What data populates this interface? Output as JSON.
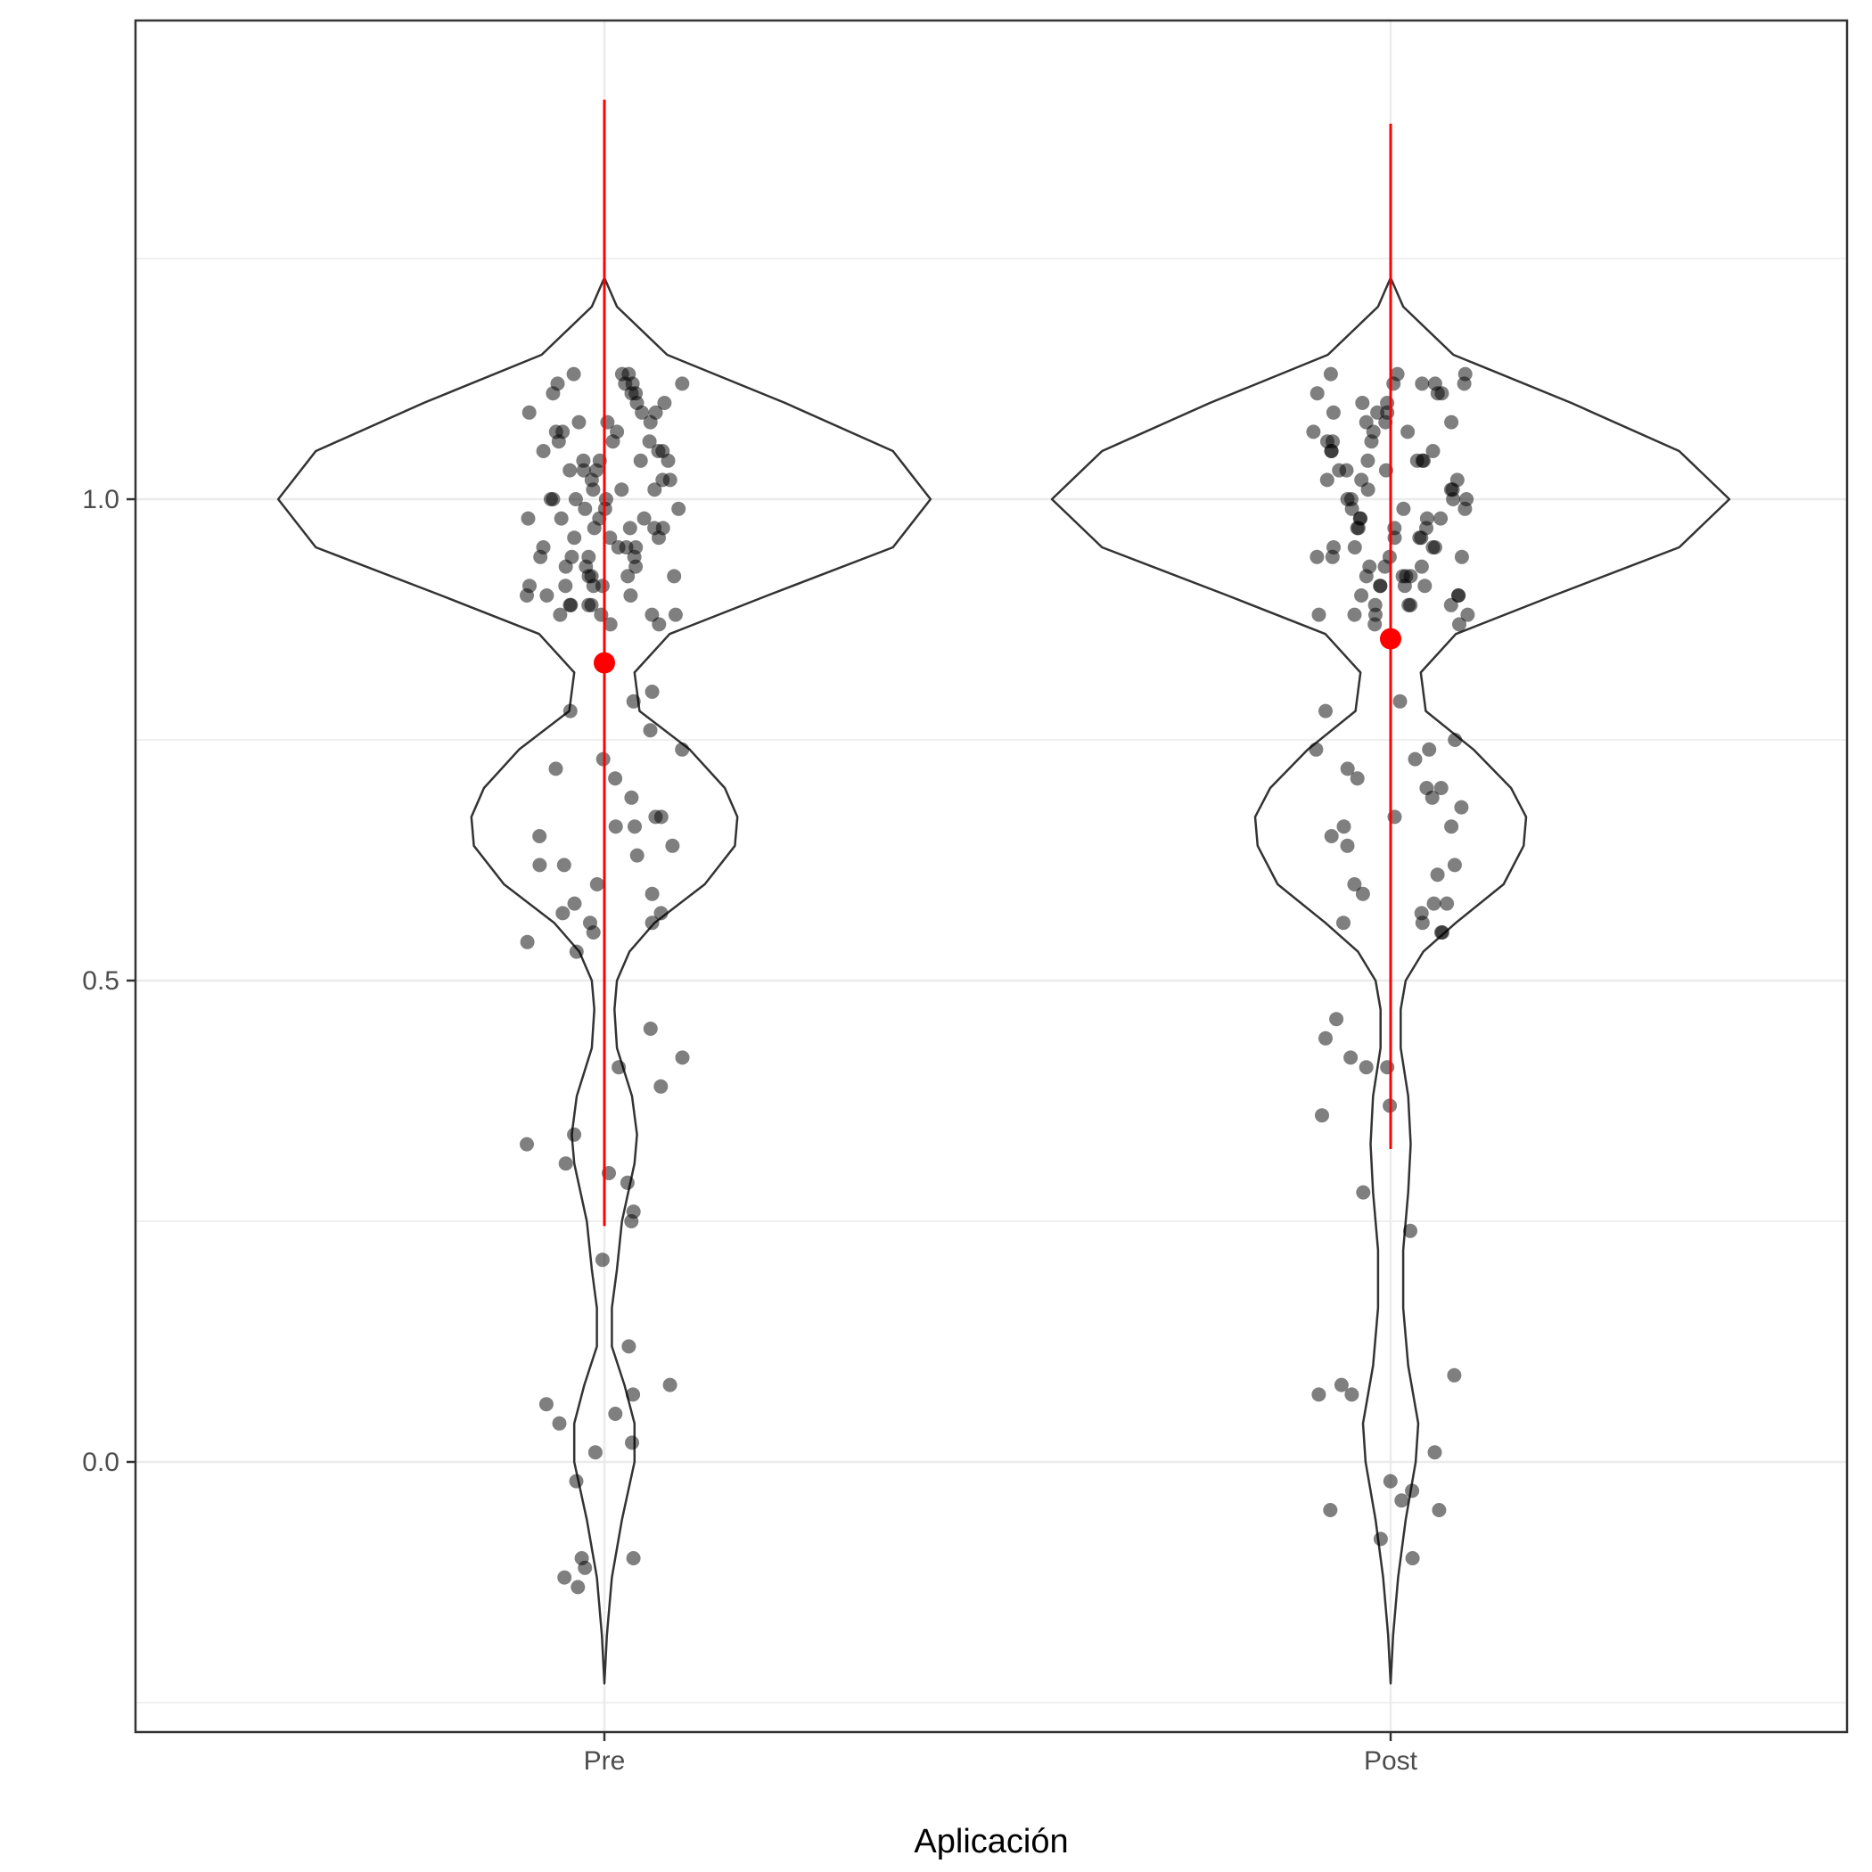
{
  "chart_data": {
    "type": "violin",
    "title": "",
    "xlabel": "Aplicación",
    "ylabel": "",
    "categories": [
      "Pre",
      "Post"
    ],
    "ylim": [
      -0.27,
      1.5
    ],
    "yticks": [
      0.0,
      0.5,
      1.0
    ],
    "ytick_labels": [
      "0.0",
      "0.5",
      "1.0"
    ],
    "grid": true,
    "colors": {
      "points": "#000000",
      "summary": "#ff0000",
      "violin_outline": "#333333",
      "grid": "#ebebeb",
      "panel_border": "#333333"
    },
    "summary": [
      {
        "category": "Pre",
        "mean": 0.83,
        "low": 0.245,
        "high": 1.415
      },
      {
        "category": "Post",
        "mean": 0.855,
        "low": 0.325,
        "high": 1.39
      }
    ],
    "violin_range": [
      -0.23,
      1.23
    ],
    "violins": [
      {
        "category": "Pre",
        "profile": [
          [
            -0.23,
            0.0
          ],
          [
            -0.18,
            0.01
          ],
          [
            -0.12,
            0.03
          ],
          [
            -0.06,
            0.07
          ],
          [
            0.0,
            0.12
          ],
          [
            0.04,
            0.12
          ],
          [
            0.08,
            0.08
          ],
          [
            0.12,
            0.03
          ],
          [
            0.16,
            0.03
          ],
          [
            0.2,
            0.05
          ],
          [
            0.25,
            0.07
          ],
          [
            0.31,
            0.12
          ],
          [
            0.34,
            0.13
          ],
          [
            0.38,
            0.11
          ],
          [
            0.43,
            0.05
          ],
          [
            0.47,
            0.04
          ],
          [
            0.5,
            0.05
          ],
          [
            0.53,
            0.1
          ],
          [
            0.56,
            0.2
          ],
          [
            0.6,
            0.4
          ],
          [
            0.64,
            0.52
          ],
          [
            0.67,
            0.53
          ],
          [
            0.7,
            0.48
          ],
          [
            0.74,
            0.34
          ],
          [
            0.78,
            0.14
          ],
          [
            0.82,
            0.12
          ],
          [
            0.86,
            0.26
          ],
          [
            0.9,
            0.65
          ],
          [
            0.95,
            1.15
          ],
          [
            1.0,
            1.3
          ],
          [
            1.05,
            1.15
          ],
          [
            1.1,
            0.72
          ],
          [
            1.15,
            0.25
          ],
          [
            1.2,
            0.05
          ],
          [
            1.23,
            0.0
          ]
        ]
      },
      {
        "category": "Post",
        "profile": [
          [
            -0.23,
            0.0
          ],
          [
            -0.18,
            0.01
          ],
          [
            -0.12,
            0.03
          ],
          [
            -0.06,
            0.06
          ],
          [
            0.0,
            0.1
          ],
          [
            0.04,
            0.11
          ],
          [
            0.1,
            0.07
          ],
          [
            0.16,
            0.05
          ],
          [
            0.22,
            0.05
          ],
          [
            0.28,
            0.07
          ],
          [
            0.33,
            0.08
          ],
          [
            0.38,
            0.07
          ],
          [
            0.43,
            0.04
          ],
          [
            0.47,
            0.04
          ],
          [
            0.5,
            0.06
          ],
          [
            0.53,
            0.13
          ],
          [
            0.56,
            0.26
          ],
          [
            0.6,
            0.45
          ],
          [
            0.64,
            0.53
          ],
          [
            0.67,
            0.54
          ],
          [
            0.7,
            0.48
          ],
          [
            0.74,
            0.33
          ],
          [
            0.78,
            0.14
          ],
          [
            0.82,
            0.12
          ],
          [
            0.86,
            0.26
          ],
          [
            0.9,
            0.65
          ],
          [
            0.95,
            1.15
          ],
          [
            1.0,
            1.35
          ],
          [
            1.05,
            1.15
          ],
          [
            1.1,
            0.72
          ],
          [
            1.15,
            0.25
          ],
          [
            1.2,
            0.05
          ],
          [
            1.23,
            0.0
          ]
        ]
      }
    ],
    "points": [
      {
        "category": "Pre",
        "values": [
          1.13,
          1.13,
          1.12,
          1.12,
          1.12,
          1.11,
          1.11,
          1.1,
          1.1,
          1.09,
          1.09,
          1.08,
          1.08,
          1.07,
          1.07,
          1.07,
          1.06,
          1.06,
          1.05,
          1.05,
          1.05,
          1.04,
          1.04,
          1.04,
          1.03,
          1.03,
          1.02,
          1.02,
          1.02,
          1.01,
          1.01,
          1.0,
          1.0,
          1.0,
          0.99,
          0.99,
          0.99,
          0.98,
          0.98,
          0.98,
          0.97,
          0.97,
          0.97,
          0.96,
          0.96,
          0.96,
          0.95,
          0.95,
          0.95,
          0.94,
          0.94,
          0.94,
          0.93,
          0.93,
          0.93,
          0.92,
          0.92,
          0.92,
          0.91,
          0.91,
          0.91,
          0.9,
          0.9,
          0.9,
          0.89,
          0.89,
          0.89,
          0.88,
          0.88,
          0.88,
          0.87,
          0.87,
          1.13,
          1.11,
          1.09,
          1.06,
          1.03,
          1.0,
          0.97,
          0.94,
          0.91,
          0.88,
          1.12,
          1.08,
          1.04,
          1.01,
          0.98,
          0.95,
          0.92,
          0.89,
          0.8,
          0.79,
          0.78,
          0.76,
          0.74,
          0.73,
          0.72,
          0.71,
          0.69,
          0.67,
          0.66,
          0.66,
          0.65,
          0.64,
          0.62,
          0.62,
          0.6,
          0.59,
          0.58,
          0.57,
          0.57,
          0.56,
          0.56,
          0.55,
          0.54,
          0.53,
          0.63,
          0.67,
          0.45,
          0.42,
          0.41,
          0.39,
          0.34,
          0.33,
          0.31,
          0.3,
          0.29,
          0.26,
          0.25,
          0.21,
          0.12,
          0.08,
          0.07,
          0.06,
          0.05,
          0.04,
          0.02,
          0.01,
          -0.02,
          -0.1,
          -0.1,
          -0.11,
          -0.12,
          -0.13
        ]
      },
      {
        "category": "Post",
        "values": [
          1.13,
          1.13,
          1.12,
          1.12,
          1.12,
          1.11,
          1.11,
          1.1,
          1.1,
          1.09,
          1.09,
          1.08,
          1.08,
          1.07,
          1.07,
          1.07,
          1.06,
          1.06,
          1.05,
          1.05,
          1.05,
          1.04,
          1.04,
          1.04,
          1.03,
          1.03,
          1.02,
          1.02,
          1.02,
          1.01,
          1.01,
          1.0,
          1.0,
          1.0,
          0.99,
          0.99,
          0.99,
          0.98,
          0.98,
          0.98,
          0.97,
          0.97,
          0.97,
          0.96,
          0.96,
          0.96,
          0.95,
          0.95,
          0.95,
          0.94,
          0.94,
          0.94,
          0.93,
          0.93,
          0.93,
          0.92,
          0.92,
          0.92,
          0.91,
          0.91,
          0.91,
          0.9,
          0.9,
          0.9,
          0.89,
          0.89,
          0.89,
          0.88,
          0.88,
          0.88,
          0.87,
          0.87,
          1.13,
          1.11,
          1.09,
          1.06,
          1.03,
          1.0,
          0.97,
          0.94,
          0.91,
          0.88,
          1.12,
          1.08,
          1.04,
          1.01,
          0.98,
          0.95,
          0.92,
          0.89,
          0.79,
          0.78,
          0.75,
          0.74,
          0.74,
          0.73,
          0.71,
          0.7,
          0.7,
          0.68,
          0.67,
          0.66,
          0.66,
          0.65,
          0.64,
          0.62,
          0.61,
          0.6,
          0.59,
          0.58,
          0.58,
          0.57,
          0.56,
          0.56,
          0.55,
          0.55,
          0.69,
          0.72,
          0.46,
          0.44,
          0.42,
          0.41,
          0.41,
          0.37,
          0.36,
          0.28,
          0.24,
          0.09,
          0.08,
          0.07,
          0.07,
          0.01,
          -0.02,
          -0.03,
          -0.04,
          -0.05,
          -0.05,
          -0.08,
          -0.1
        ]
      }
    ]
  }
}
